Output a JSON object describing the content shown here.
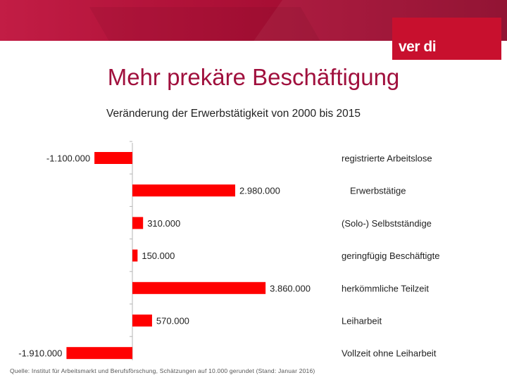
{
  "slide": {
    "title": "Mehr prekäre Beschäftigung",
    "logo": "ver di",
    "source": "Quelle: Institut für Arbeitsmarkt und Berufsforschung, Schätzungen auf 10.000 gerundet (Stand: Januar 2016)"
  },
  "colors": {
    "banner": "#a8103a",
    "logo_bg": "#c8102e",
    "title": "#a0103d",
    "bar": "#ff0000"
  },
  "chart_data": {
    "type": "bar",
    "orientation": "horizontal",
    "title": "Veränderung der Erwerbstätigkeit von 2000 bis 2015",
    "categories": [
      "registrierte Arbeitslose",
      "Erwerbstätige",
      "(Solo-) Selbstständige",
      "geringfügig Beschäftigte",
      "herkömmliche Teilzeit",
      "Leiharbeit",
      "Vollzeit ohne Leiharbeit"
    ],
    "values": [
      -1100000,
      2980000,
      310000,
      150000,
      3860000,
      570000,
      -1910000
    ],
    "value_labels": [
      "-1.100.000",
      "2.980.000",
      "310.000",
      "150.000",
      "3.860.000",
      "570.000",
      "-1.910.000"
    ],
    "xlim": [
      -2000000,
      4000000
    ],
    "legend": "none"
  }
}
